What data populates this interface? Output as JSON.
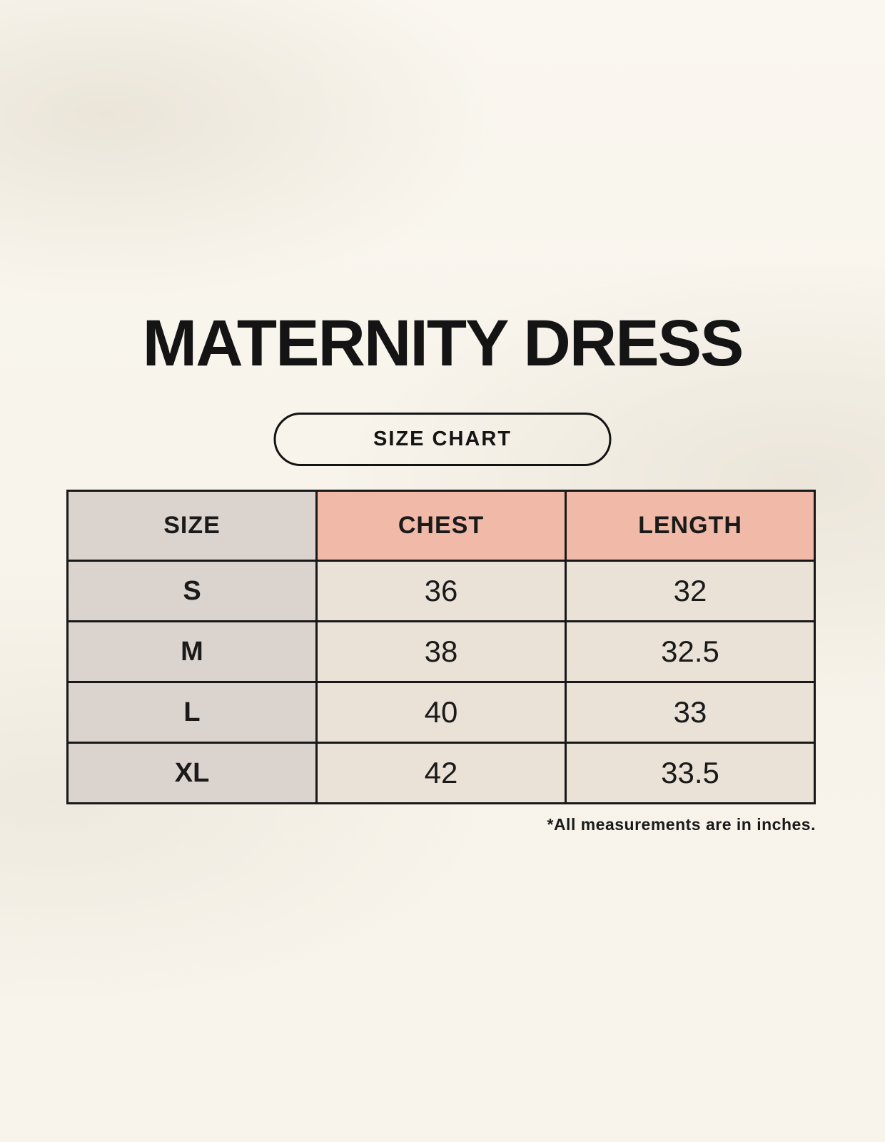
{
  "page": {
    "title": "MATERNITY DRESS",
    "badge_label": "SIZE CHART",
    "note": "*All measurements are in inches."
  },
  "chart_data": {
    "type": "table",
    "title": "MATERNITY DRESS",
    "columns": [
      "SIZE",
      "CHEST",
      "LENGTH"
    ],
    "rows": [
      [
        "S",
        "36",
        "32"
      ],
      [
        "M",
        "38",
        "32.5"
      ],
      [
        "L",
        "40",
        "33"
      ],
      [
        "XL",
        "42",
        "33.5"
      ]
    ],
    "note": "*All measurements are in inches."
  },
  "colors": {
    "background": "#f8f4ec",
    "header_pink": "#f0b9a8",
    "size_column_gray": "#dbd3ce",
    "cell_cream": "#eae2d7",
    "border_black": "#181818",
    "text_black": "#161616"
  }
}
